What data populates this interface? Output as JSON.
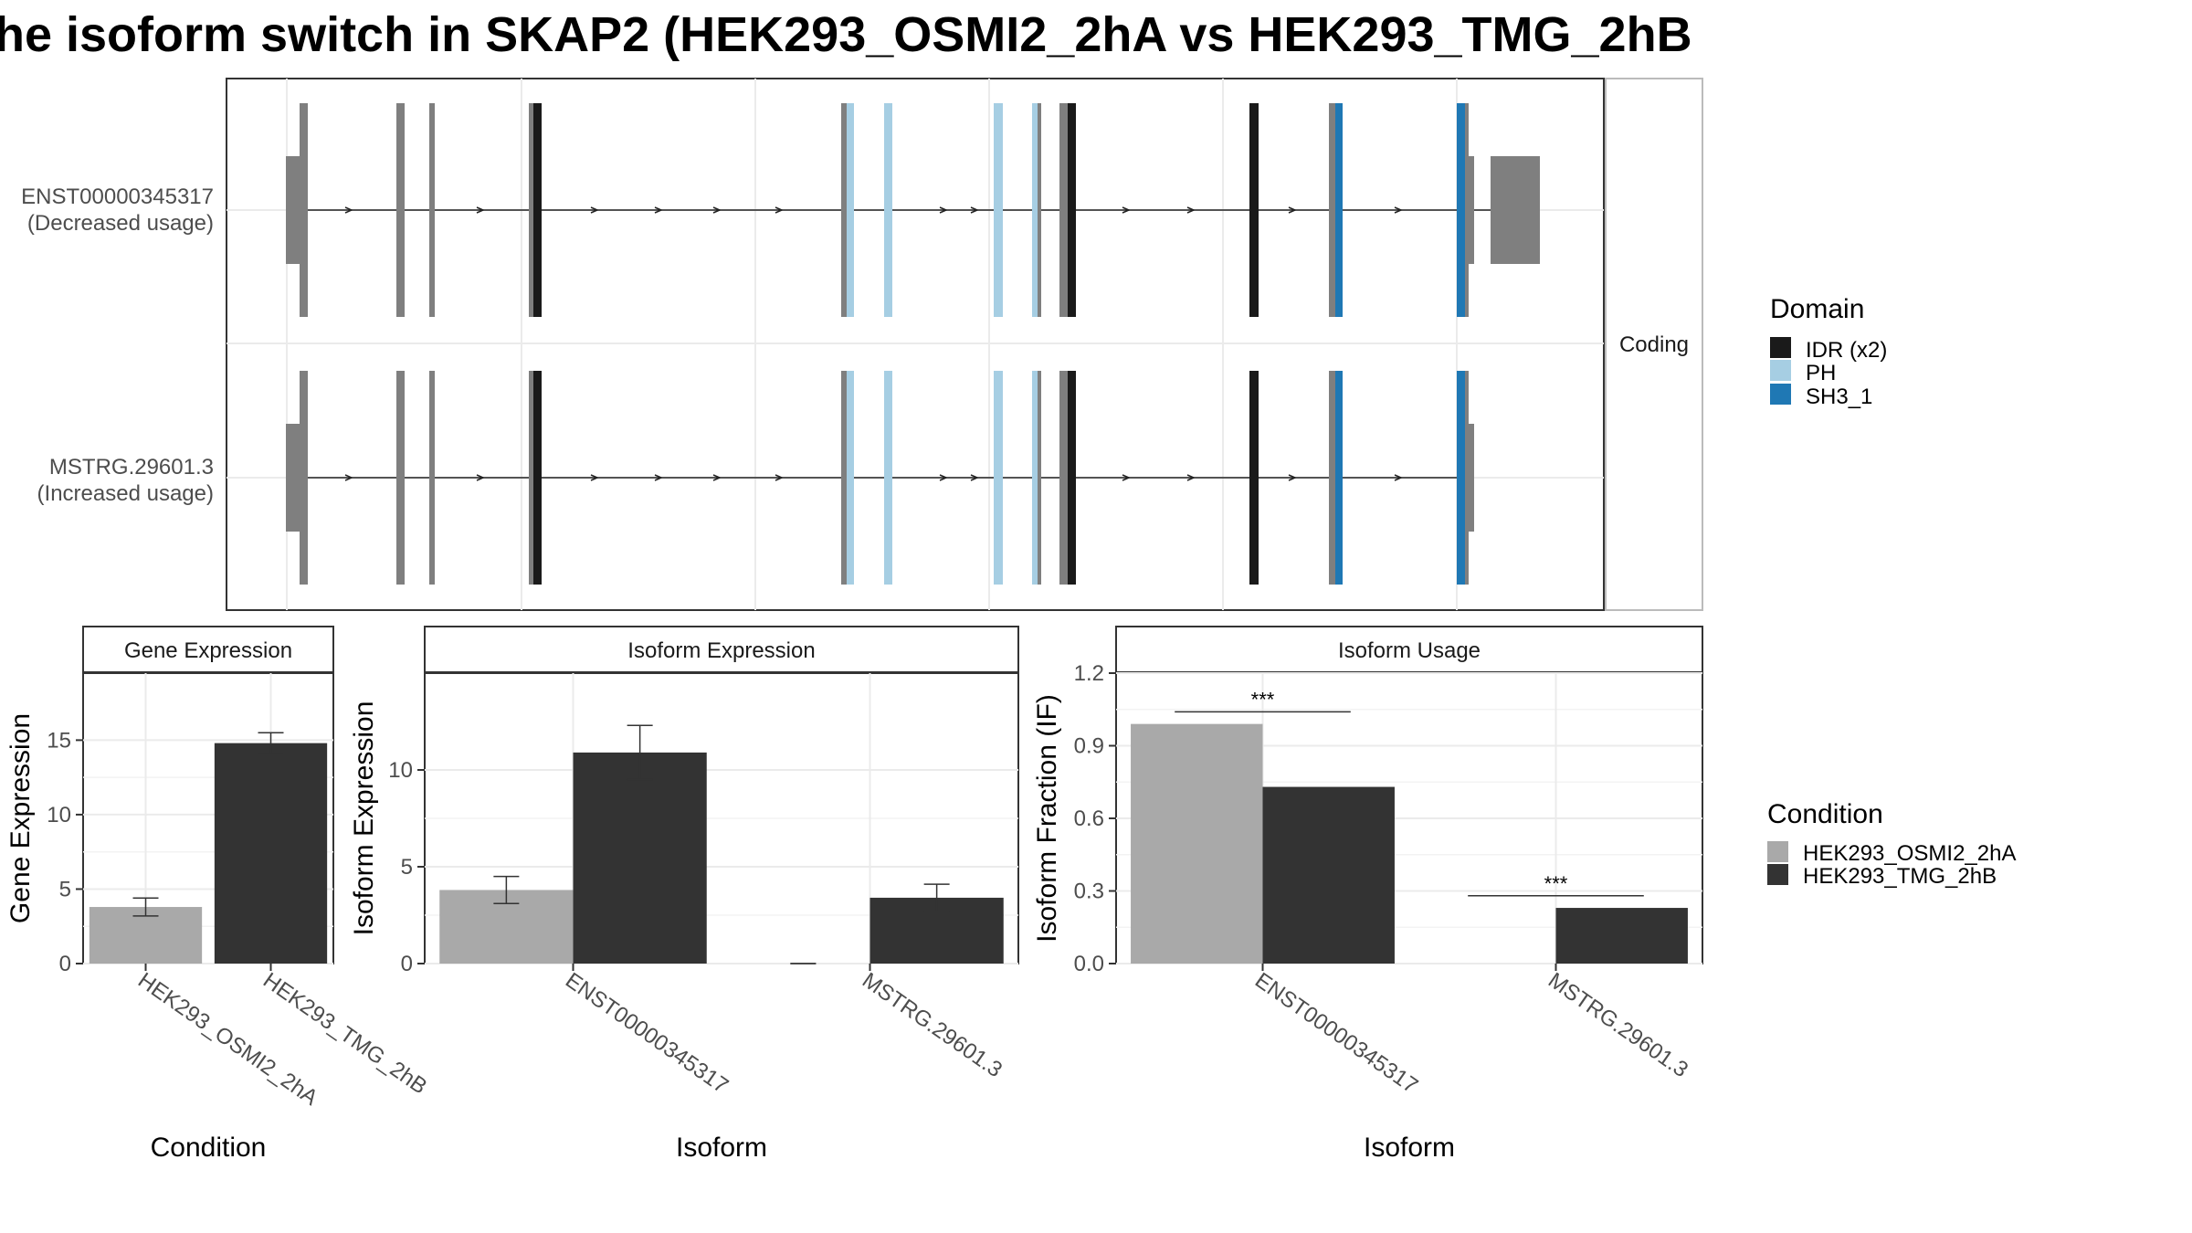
{
  "title": "he isoform switch in SKAP2 (HEK293_OSMI2_2hA vs HEK293_TMG_2hB",
  "colors": {
    "idr": "#1a1a1a",
    "ph": "#a6cee3",
    "sh3": "#1f78b4",
    "exon": "#7f7f7f",
    "cond_a": "#a9a9a9",
    "cond_b": "#333333"
  },
  "chart_data": [
    {
      "type": "gene-structure",
      "strip_label": "Coding",
      "isoforms": [
        {
          "id": "ENST00000345317",
          "line1": "ENST00000345317",
          "line2": "(Decreased usage)",
          "has_last_exon": true
        },
        {
          "id": "MSTRG.29601.3",
          "line1": "MSTRG.29601.3",
          "line2": "(Increased usage)",
          "has_last_exon": false
        }
      ],
      "legend_title": "Domain",
      "legend": [
        {
          "label": "IDR (x2)",
          "color": "#1a1a1a"
        },
        {
          "label": "PH",
          "color": "#a6cee3"
        },
        {
          "label": "SH3_1",
          "color": "#1f78b4"
        }
      ]
    },
    {
      "type": "bar",
      "strip": "Gene Expression",
      "xlabel": "Condition",
      "ylabel": "Gene Expression",
      "categories": [
        "HEK293_OSMI2_2hA",
        "HEK293_TMG_2hB"
      ],
      "values": [
        3.8,
        14.8
      ],
      "errors": [
        [
          3.2,
          4.4
        ],
        [
          14.1,
          15.5
        ]
      ],
      "ylim": [
        0,
        19.5
      ],
      "yticks": [
        0,
        5,
        10,
        15
      ]
    },
    {
      "type": "bar",
      "strip": "Isoform Expression",
      "xlabel": "Isoform",
      "ylabel": "Isoform Expression",
      "categories": [
        "ENST00000345317",
        "MSTRG.29601.3"
      ],
      "series": [
        {
          "name": "HEK293_OSMI2_2hA",
          "values": [
            3.8,
            0.0
          ],
          "errors": [
            [
              3.1,
              4.5
            ],
            [
              0.0,
              0.0
            ]
          ]
        },
        {
          "name": "HEK293_TMG_2hB",
          "values": [
            10.9,
            3.4
          ],
          "errors": [
            [
              9.5,
              12.3
            ],
            [
              2.7,
              4.1
            ]
          ]
        }
      ],
      "ylim": [
        0,
        15
      ],
      "yticks": [
        0,
        5,
        10
      ]
    },
    {
      "type": "bar",
      "strip": "Isoform Usage",
      "xlabel": "Isoform",
      "ylabel": "Isoform Fraction (IF)",
      "categories": [
        "ENST00000345317",
        "MSTRG.29601.3"
      ],
      "series": [
        {
          "name": "HEK293_OSMI2_2hA",
          "values": [
            0.99,
            0.0
          ]
        },
        {
          "name": "HEK293_TMG_2hB",
          "values": [
            0.73,
            0.23
          ]
        }
      ],
      "ylim": [
        0,
        1.2
      ],
      "yticks": [
        "0.0",
        "0.3",
        "0.6",
        "0.9",
        "1.2"
      ],
      "significance": [
        {
          "category": 0,
          "label": "***",
          "y": 1.04
        },
        {
          "category": 1,
          "label": "***",
          "y": 0.28
        }
      ]
    }
  ],
  "condition_legend": {
    "title": "Condition",
    "items": [
      {
        "label": "HEK293_OSMI2_2hA",
        "color": "#a9a9a9"
      },
      {
        "label": "HEK293_TMG_2hB",
        "color": "#333333"
      }
    ]
  }
}
